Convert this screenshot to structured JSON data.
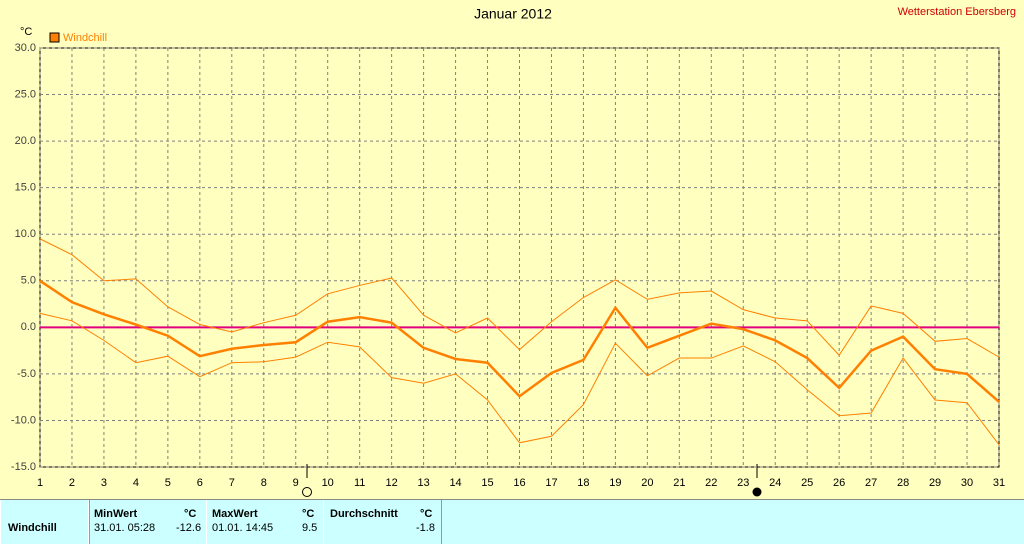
{
  "chart_data": {
    "type": "line",
    "title": "Januar 2012",
    "station": "Wetterstation Ebersberg",
    "ylabel": "°C",
    "x": [
      1,
      2,
      3,
      4,
      5,
      6,
      7,
      8,
      9,
      10,
      11,
      12,
      13,
      14,
      15,
      16,
      17,
      18,
      19,
      20,
      21,
      22,
      23,
      24,
      25,
      26,
      27,
      28,
      29,
      30,
      31
    ],
    "xlim": [
      1,
      31
    ],
    "xticks": [
      1,
      2,
      3,
      4,
      5,
      6,
      7,
      8,
      9,
      10,
      11,
      12,
      13,
      14,
      15,
      16,
      17,
      18,
      19,
      20,
      21,
      22,
      23,
      24,
      25,
      26,
      27,
      28,
      29,
      30,
      31
    ],
    "ylim": [
      -15,
      30
    ],
    "yticks": [
      {
        "value": -15,
        "label": "-15.0"
      },
      {
        "value": -10,
        "label": "-10.0"
      },
      {
        "value": -5,
        "label": "-5.0"
      },
      {
        "value": 0,
        "label": "0.0"
      },
      {
        "value": 5,
        "label": "5.0"
      },
      {
        "value": 10,
        "label": "10.0"
      },
      {
        "value": 15,
        "label": "15.0"
      },
      {
        "value": 20,
        "label": "20.0"
      },
      {
        "value": 25,
        "label": "25.0"
      },
      {
        "value": 30,
        "label": "30.0"
      }
    ],
    "grid": true,
    "hline": 0,
    "hline_color": "#e0007f",
    "series": [
      {
        "name": "Windchill",
        "color": "#ff8000",
        "values": [
          5.0,
          2.7,
          1.4,
          0.3,
          -0.9,
          -3.1,
          -2.3,
          -1.9,
          -1.6,
          0.6,
          1.1,
          0.5,
          -2.2,
          -3.4,
          -3.8,
          -7.4,
          -4.9,
          -3.5,
          2.1,
          -2.2,
          -0.9,
          0.4,
          -0.2,
          -1.4,
          -3.3,
          -6.5,
          -2.5,
          -1.0,
          -4.5,
          -5.0,
          -8.0
        ]
      },
      {
        "color": "#ff8000",
        "values": [
          9.5,
          7.8,
          5.0,
          5.2,
          2.2,
          0.3,
          -0.5,
          0.5,
          1.3,
          3.6,
          4.5,
          5.3,
          1.3,
          -0.6,
          1.0,
          -2.4,
          0.6,
          3.2,
          5.1,
          3.0,
          3.7,
          3.9,
          1.9,
          1.0,
          0.7,
          -3.0,
          2.3,
          1.5,
          -1.5,
          -1.2,
          -3.2
        ]
      },
      {
        "color": "#ff8000",
        "values": [
          1.5,
          0.7,
          -1.4,
          -3.8,
          -3.1,
          -5.3,
          -3.8,
          -3.7,
          -3.2,
          -1.6,
          -2.1,
          -5.4,
          -6.0,
          -5.0,
          -7.8,
          -12.4,
          -11.7,
          -8.3,
          -1.7,
          -5.2,
          -3.3,
          -3.3,
          -2.0,
          -3.7,
          -6.7,
          -9.5,
          -9.2,
          -3.3,
          -7.8,
          -8.1,
          -12.6
        ]
      }
    ]
  },
  "table": {
    "row_label": "Windchill",
    "columns": [
      {
        "header": "MinWert",
        "unit": "°C",
        "time": "31.01. 05:28",
        "value": "-12.6"
      },
      {
        "header": "MaxWert",
        "unit": "°C",
        "time": "01.01. 14:45",
        "value": "9.5"
      },
      {
        "header": "Durchschnitt",
        "unit": "°C",
        "value": "-1.8"
      }
    ]
  }
}
